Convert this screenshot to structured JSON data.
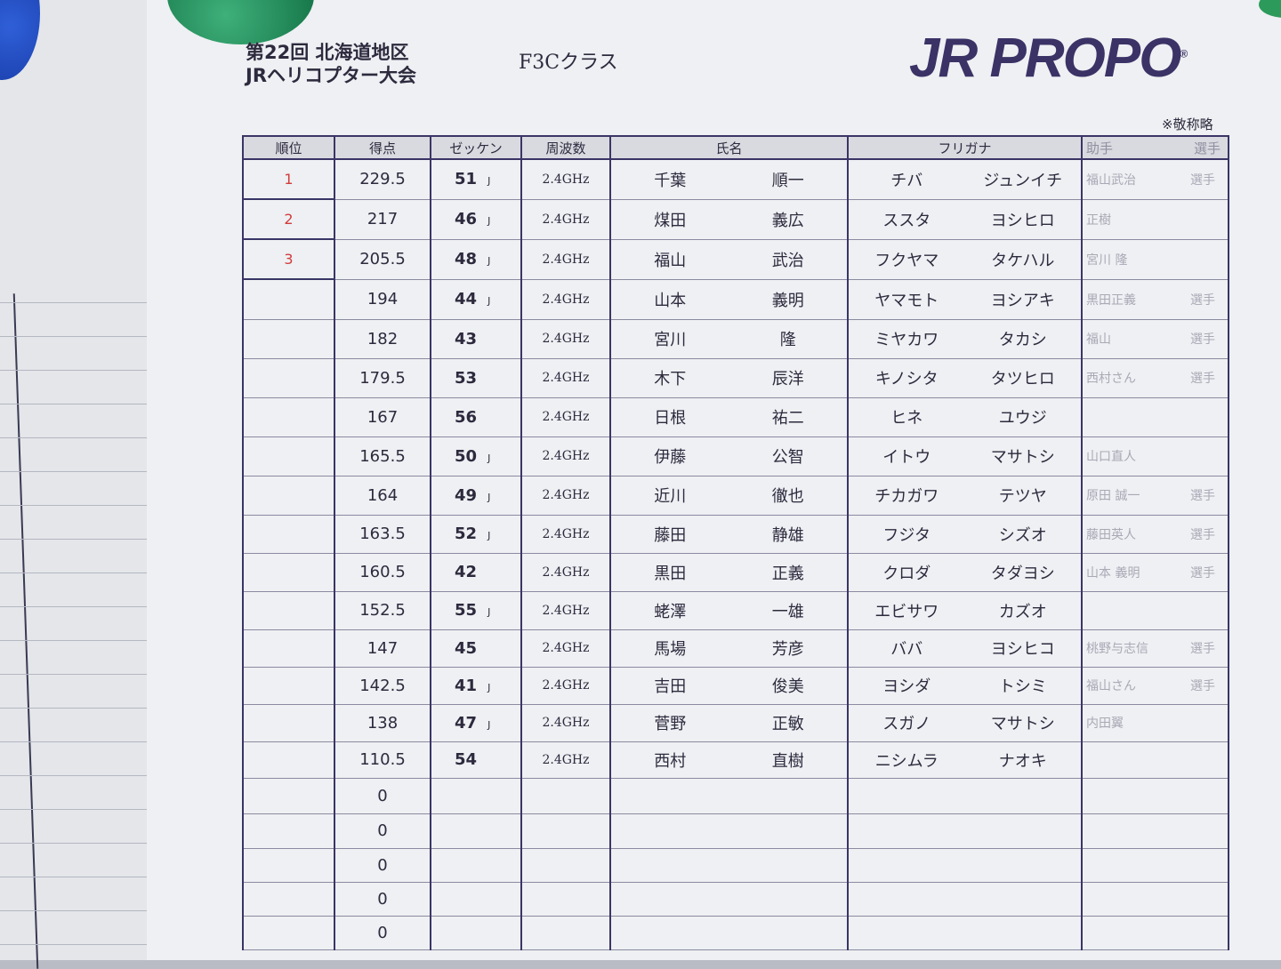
{
  "header": {
    "title_line1": "第22回 北海道地区",
    "title_line2": "JRヘリコプター大会",
    "class": "F3Cクラス",
    "logo": "JR PROPO",
    "note": "※敬称略"
  },
  "columns": {
    "rank": "順位",
    "score": "得点",
    "number": "ゼッケン",
    "frequency": "周波数",
    "name": "氏名",
    "kana": "フリガナ",
    "helper": "助手",
    "helper_role": "選手"
  },
  "rows": [
    {
      "rank": "1",
      "score": "229.5",
      "number": "51",
      "mark": "J",
      "freq": "2.4GHz",
      "family": "千葉",
      "given": "順一",
      "kana_family": "チバ",
      "kana_given": "ジュンイチ",
      "helper": "福山武治",
      "role": "選手"
    },
    {
      "rank": "2",
      "score": "217",
      "number": "46",
      "mark": "J",
      "freq": "2.4GHz",
      "family": "煤田",
      "given": "義広",
      "kana_family": "ススタ",
      "kana_given": "ヨシヒロ",
      "helper": "正樹",
      "role": ""
    },
    {
      "rank": "3",
      "score": "205.5",
      "number": "48",
      "mark": "J",
      "freq": "2.4GHz",
      "family": "福山",
      "given": "武治",
      "kana_family": "フクヤマ",
      "kana_given": "タケハル",
      "helper": "宮川 隆",
      "role": ""
    },
    {
      "rank": "",
      "score": "194",
      "number": "44",
      "mark": "J",
      "freq": "2.4GHz",
      "family": "山本",
      "given": "義明",
      "kana_family": "ヤマモト",
      "kana_given": "ヨシアキ",
      "helper": "黒田正義",
      "role": "選手"
    },
    {
      "rank": "",
      "score": "182",
      "number": "43",
      "mark": "",
      "freq": "2.4GHz",
      "family": "宮川",
      "given": "隆",
      "kana_family": "ミヤカワ",
      "kana_given": "タカシ",
      "helper": "福山",
      "role": "選手"
    },
    {
      "rank": "",
      "score": "179.5",
      "number": "53",
      "mark": "",
      "freq": "2.4GHz",
      "family": "木下",
      "given": "辰洋",
      "kana_family": "キノシタ",
      "kana_given": "タツヒロ",
      "helper": "西村さん",
      "role": "選手"
    },
    {
      "rank": "",
      "score": "167",
      "number": "56",
      "mark": "",
      "freq": "2.4GHz",
      "family": "日根",
      "given": "祐二",
      "kana_family": "ヒネ",
      "kana_given": "ユウジ",
      "helper": "",
      "role": ""
    },
    {
      "rank": "",
      "score": "165.5",
      "number": "50",
      "mark": "J",
      "freq": "2.4GHz",
      "family": "伊藤",
      "given": "公智",
      "kana_family": "イトウ",
      "kana_given": "マサトシ",
      "helper": "山口直人",
      "role": ""
    },
    {
      "rank": "",
      "score": "164",
      "number": "49",
      "mark": "J",
      "freq": "2.4GHz",
      "family": "近川",
      "given": "徹也",
      "kana_family": "チカガワ",
      "kana_given": "テツヤ",
      "helper": "原田 誠一",
      "role": "選手"
    },
    {
      "rank": "",
      "score": "163.5",
      "number": "52",
      "mark": "J",
      "freq": "2.4GHz",
      "family": "藤田",
      "given": "静雄",
      "kana_family": "フジタ",
      "kana_given": "シズオ",
      "helper": "藤田英人",
      "role": "選手"
    },
    {
      "rank": "",
      "score": "160.5",
      "number": "42",
      "mark": "",
      "freq": "2.4GHz",
      "family": "黒田",
      "given": "正義",
      "kana_family": "クロダ",
      "kana_given": "タダヨシ",
      "helper": "山本 義明",
      "role": "選手"
    },
    {
      "rank": "",
      "score": "152.5",
      "number": "55",
      "mark": "J",
      "freq": "2.4GHz",
      "family": "蛯澤",
      "given": "一雄",
      "kana_family": "エビサワ",
      "kana_given": "カズオ",
      "helper": "",
      "role": ""
    },
    {
      "rank": "",
      "score": "147",
      "number": "45",
      "mark": "",
      "freq": "2.4GHz",
      "family": "馬場",
      "given": "芳彦",
      "kana_family": "ババ",
      "kana_given": "ヨシヒコ",
      "helper": "桃野与志信",
      "role": "選手"
    },
    {
      "rank": "",
      "score": "142.5",
      "number": "41",
      "mark": "J",
      "freq": "2.4GHz",
      "family": "吉田",
      "given": "俊美",
      "kana_family": "ヨシダ",
      "kana_given": "トシミ",
      "helper": "福山さん",
      "role": "選手"
    },
    {
      "rank": "",
      "score": "138",
      "number": "47",
      "mark": "J",
      "freq": "2.4GHz",
      "family": "菅野",
      "given": "正敏",
      "kana_family": "スガノ",
      "kana_given": "マサトシ",
      "helper": "内田翼",
      "role": ""
    },
    {
      "rank": "",
      "score": "110.5",
      "number": "54",
      "mark": "",
      "freq": "2.4GHz",
      "family": "西村",
      "given": "直樹",
      "kana_family": "ニシムラ",
      "kana_given": "ナオキ",
      "helper": "",
      "role": ""
    },
    {
      "rank": "",
      "score": "0",
      "number": "",
      "mark": "",
      "freq": "",
      "family": "",
      "given": "",
      "kana_family": "",
      "kana_given": "",
      "helper": "",
      "role": ""
    },
    {
      "rank": "",
      "score": "0",
      "number": "",
      "mark": "",
      "freq": "",
      "family": "",
      "given": "",
      "kana_family": "",
      "kana_given": "",
      "helper": "",
      "role": ""
    },
    {
      "rank": "",
      "score": "0",
      "number": "",
      "mark": "",
      "freq": "",
      "family": "",
      "given": "",
      "kana_family": "",
      "kana_given": "",
      "helper": "",
      "role": ""
    },
    {
      "rank": "",
      "score": "0",
      "number": "",
      "mark": "",
      "freq": "",
      "family": "",
      "given": "",
      "kana_family": "",
      "kana_given": "",
      "helper": "",
      "role": ""
    },
    {
      "rank": "",
      "score": "0",
      "number": "",
      "mark": "",
      "freq": "",
      "family": "",
      "given": "",
      "kana_family": "",
      "kana_given": "",
      "helper": "",
      "role": ""
    }
  ]
}
